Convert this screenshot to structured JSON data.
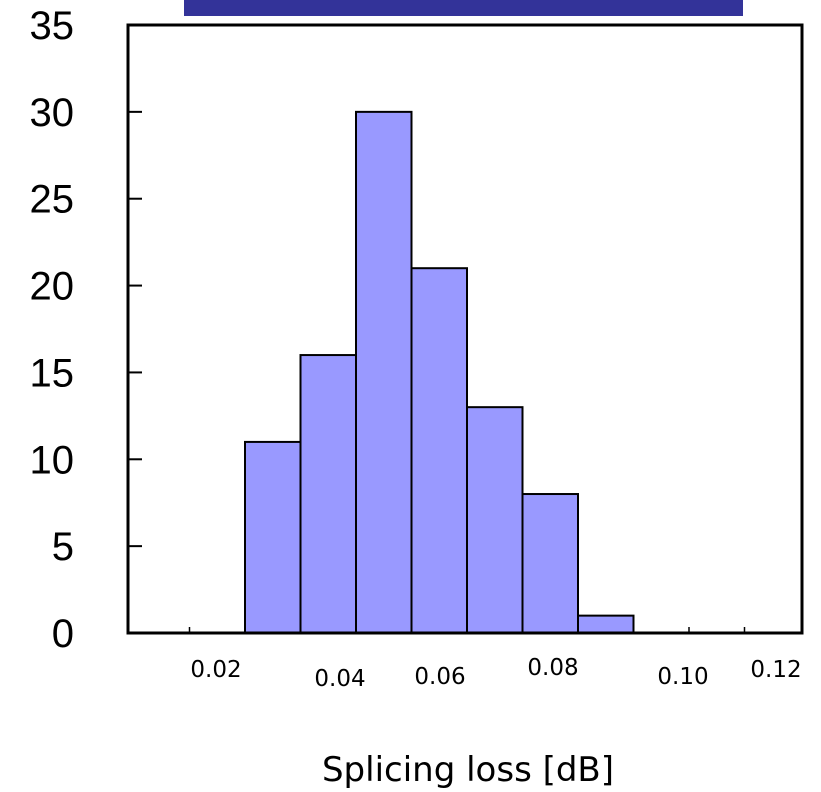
{
  "chart_data": {
    "type": "bar",
    "title": "",
    "xlabel": "Splicing loss [dB]",
    "ylabel": "",
    "ylim": [
      0,
      35
    ],
    "y_ticks": [
      "0",
      "5",
      "10",
      "15",
      "20",
      "25",
      "30",
      "35"
    ],
    "x_ticks": [
      "0.02",
      "0.04",
      "0.06",
      "0.08",
      "0.10",
      "0.12"
    ],
    "bins": [
      {
        "lo": 0.025,
        "hi": 0.035,
        "value": 11
      },
      {
        "lo": 0.035,
        "hi": 0.045,
        "value": 16
      },
      {
        "lo": 0.045,
        "hi": 0.055,
        "value": 30
      },
      {
        "lo": 0.055,
        "hi": 0.065,
        "value": 21
      },
      {
        "lo": 0.065,
        "hi": 0.075,
        "value": 13
      },
      {
        "lo": 0.075,
        "hi": 0.085,
        "value": 8
      },
      {
        "lo": 0.085,
        "hi": 0.095,
        "value": 1
      }
    ],
    "grid": false,
    "colors": {
      "bar_fill": "#9999ff",
      "bar_stroke": "#000000",
      "banner": "#333399"
    }
  }
}
